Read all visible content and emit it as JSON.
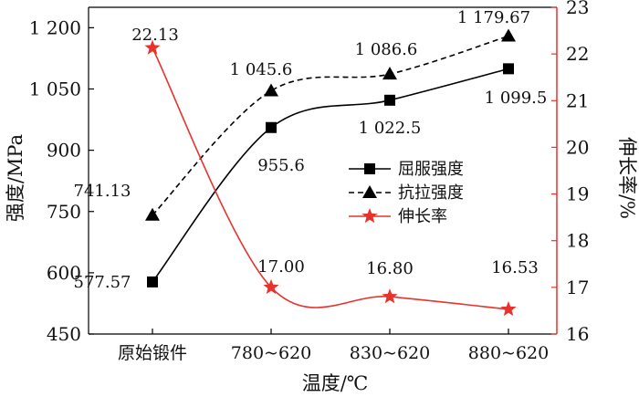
{
  "chart_data": {
    "type": "line",
    "categories": [
      "原始锻件",
      "780~620",
      "830~620",
      "880~620"
    ],
    "xlabel": "温度/℃",
    "ylabel": "强度/MPa",
    "y2label": "伸长率/%",
    "ylim": [
      450,
      1250
    ],
    "yticks": [
      "450",
      "600",
      "750",
      "900",
      "1 050",
      "1 200"
    ],
    "ytick_values": [
      450,
      600,
      750,
      900,
      1050,
      1200
    ],
    "y2lim": [
      16,
      23
    ],
    "y2ticks": [
      "16",
      "17",
      "18",
      "19",
      "20",
      "21",
      "22",
      "23"
    ],
    "y2tick_values": [
      16,
      17,
      18,
      19,
      20,
      21,
      22,
      23
    ],
    "grid": false,
    "legend": "center-right",
    "series": [
      {
        "name": "屈服强度",
        "axis": "left",
        "values": [
          577.57,
          955.6,
          1022.5,
          1099.5
        ],
        "labels": [
          "577.57",
          "955.6",
          "1 022.5",
          "1 099.5"
        ],
        "color": "#000000",
        "line": "solid",
        "marker": "square"
      },
      {
        "name": "抗拉强度",
        "axis": "left",
        "values": [
          741.13,
          1045.6,
          1086.6,
          1179.67
        ],
        "labels": [
          "741.13",
          "1 045.6",
          "1 086.6",
          "1 179.67"
        ],
        "color": "#000000",
        "line": "dashed",
        "marker": "triangle"
      },
      {
        "name": "伸长率",
        "axis": "right",
        "values": [
          22.13,
          17.0,
          16.8,
          16.53
        ],
        "labels": [
          "22.13",
          "17.00",
          "16.80",
          "16.53"
        ],
        "color": "#e8332c",
        "line": "solid",
        "marker": "star"
      }
    ]
  }
}
